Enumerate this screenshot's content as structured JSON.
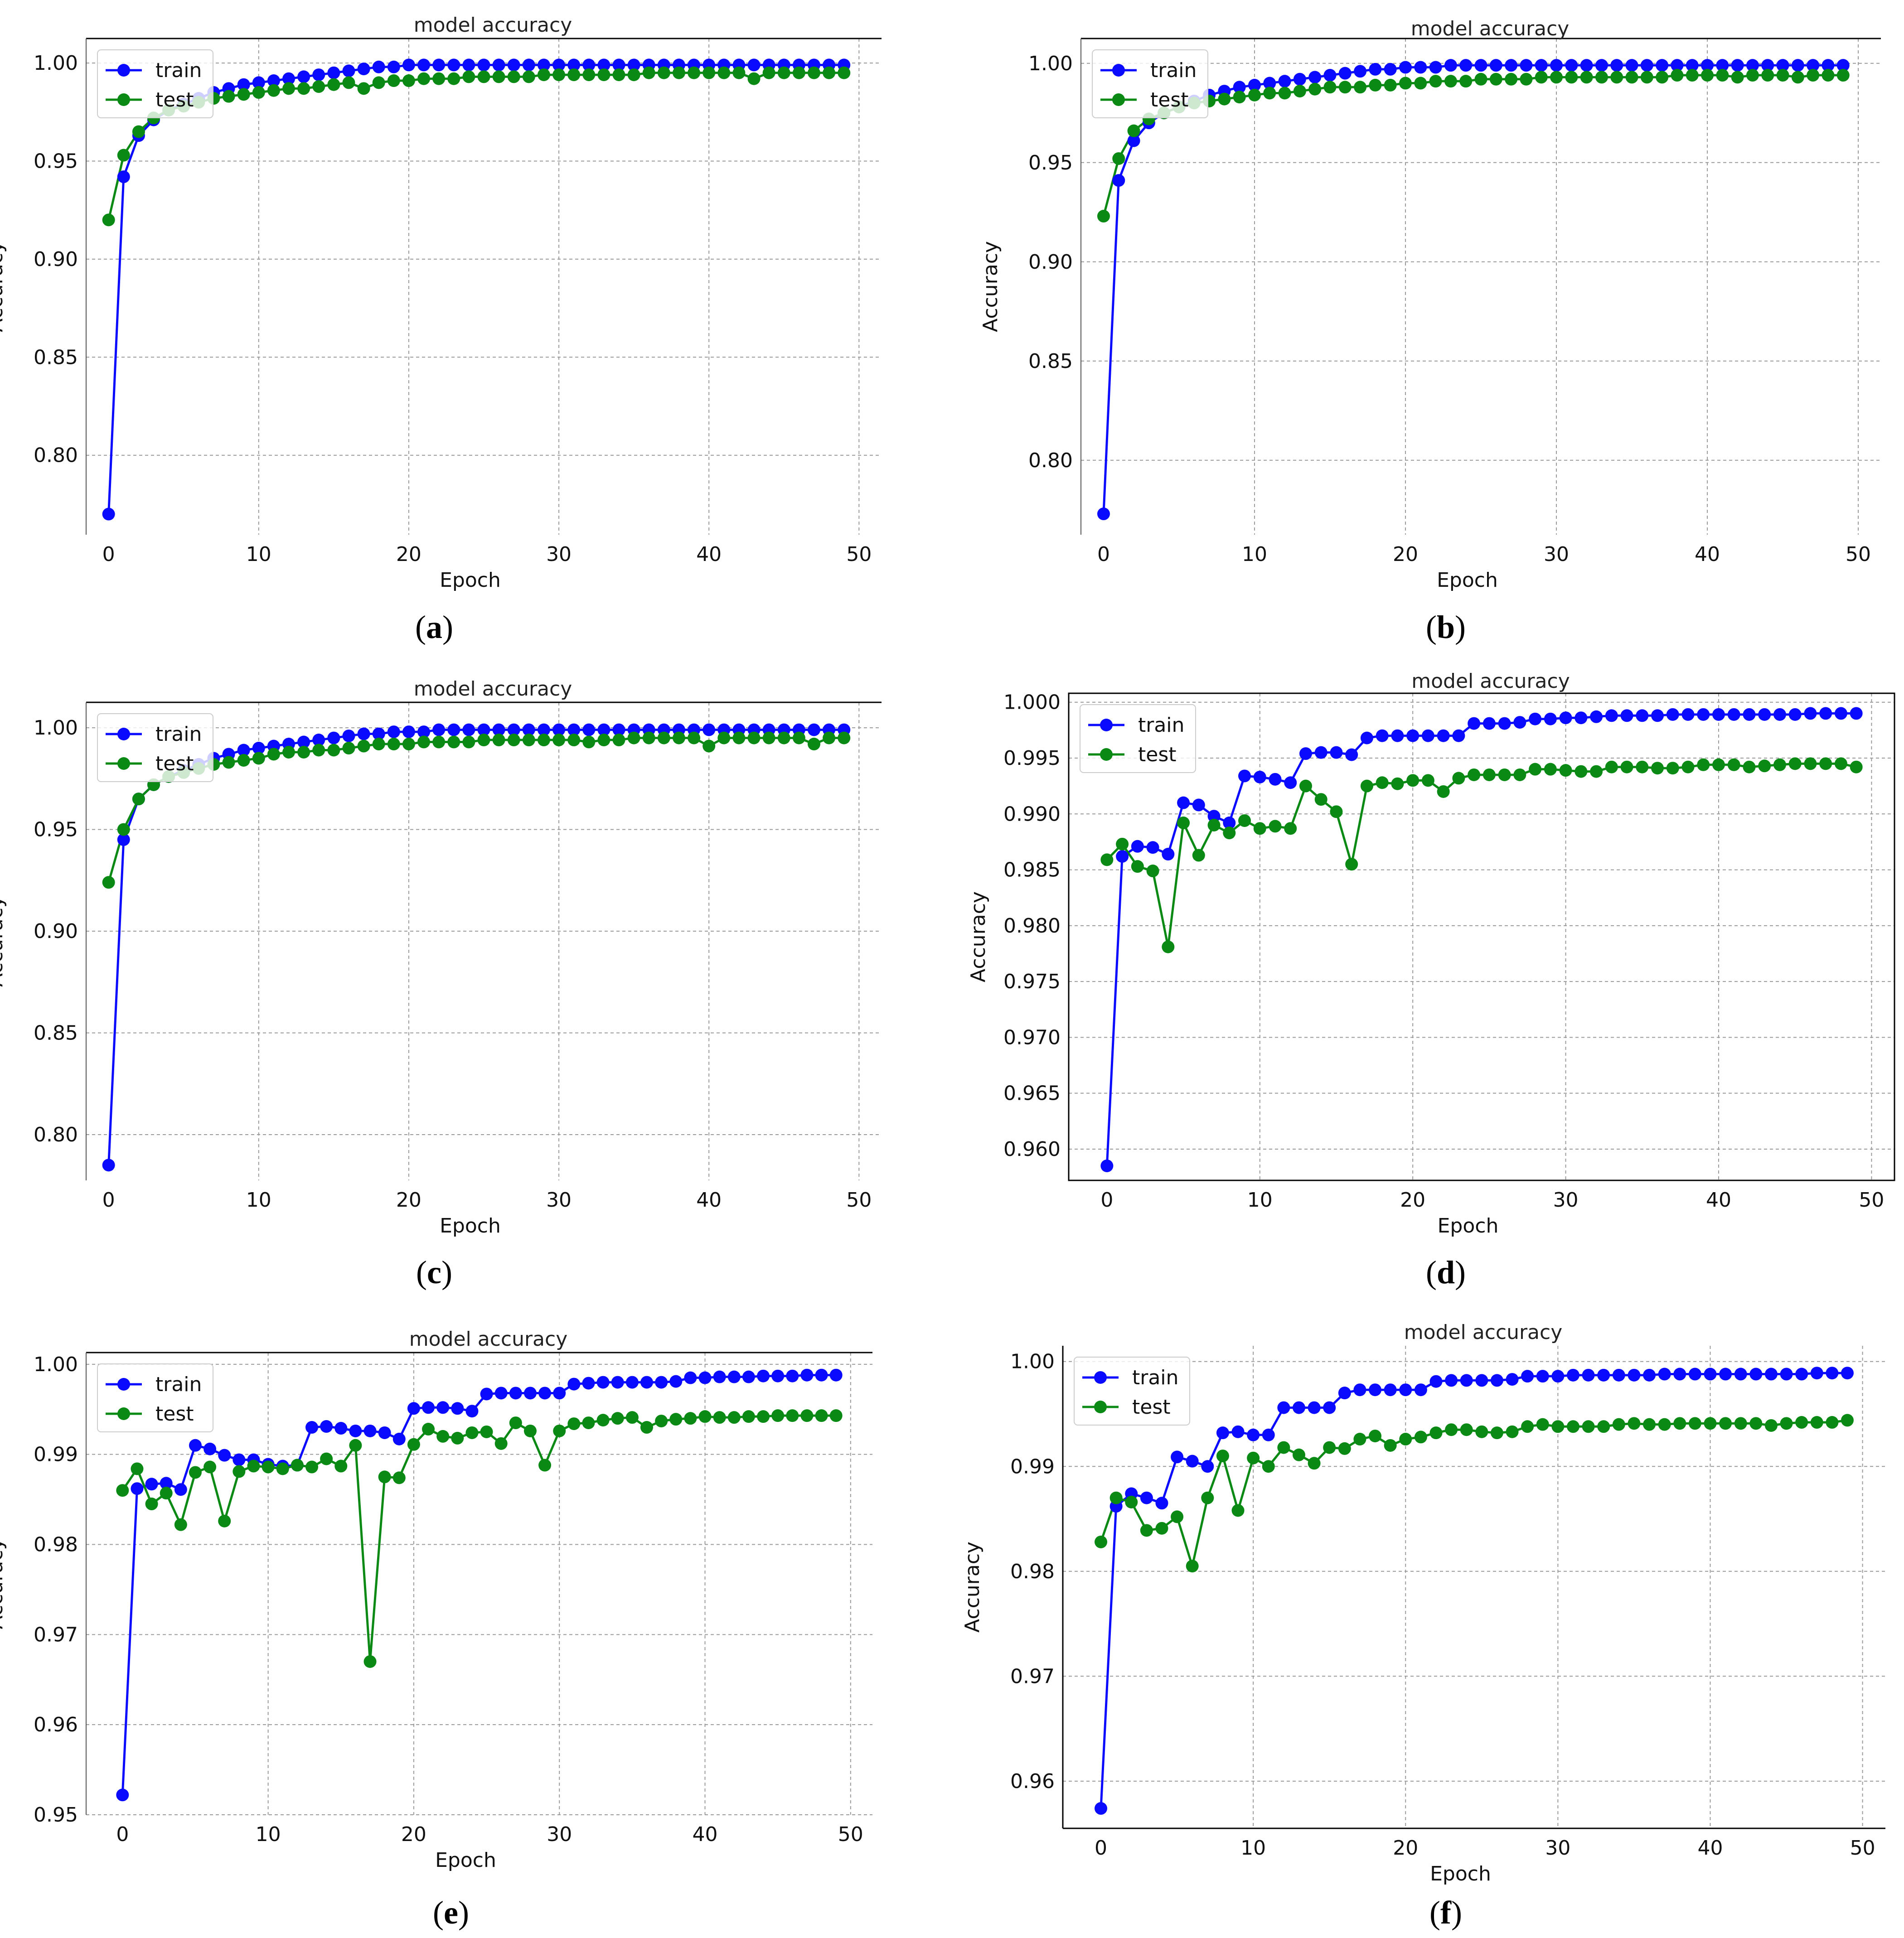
{
  "colors": {
    "train": "#0a0aff",
    "test": "#0a8a14",
    "grid": "#9a9a9a",
    "axis": "#000000"
  },
  "chart_data": [
    {
      "id": "a",
      "caption": "a",
      "type": "line",
      "title": "model accuracy",
      "xlabel": "Epoch",
      "ylabel": "Accuracy",
      "xlim": [
        -1.5,
        51.5
      ],
      "ylim": [
        0.7595,
        1.0125
      ],
      "xticks": [
        0,
        10,
        20,
        30,
        40,
        50
      ],
      "yticks": [
        0.8,
        0.85,
        0.9,
        0.95,
        1.0
      ],
      "ytick_labels": [
        "0.80",
        "0.85",
        "0.90",
        "0.95",
        "1.00"
      ],
      "legend": {
        "position": "top-left",
        "entries": [
          "train",
          "test"
        ]
      },
      "series": [
        {
          "name": "train",
          "values": [
            0.77,
            0.942,
            0.963,
            0.971,
            0.976,
            0.979,
            0.982,
            0.985,
            0.987,
            0.989,
            0.99,
            0.991,
            0.992,
            0.993,
            0.994,
            0.995,
            0.996,
            0.997,
            0.998,
            0.998,
            0.999,
            0.999,
            0.999,
            0.999,
            0.999,
            0.999,
            0.999,
            0.999,
            0.999,
            0.999,
            0.999,
            0.999,
            0.999,
            0.999,
            0.999,
            0.999,
            0.999,
            0.999,
            0.999,
            0.999,
            0.999,
            0.999,
            0.999,
            0.999,
            0.999,
            0.999,
            0.999,
            0.999,
            0.999,
            0.999
          ]
        },
        {
          "name": "test",
          "values": [
            0.92,
            0.953,
            0.965,
            0.972,
            0.976,
            0.978,
            0.98,
            0.982,
            0.983,
            0.984,
            0.985,
            0.986,
            0.987,
            0.987,
            0.988,
            0.989,
            0.99,
            0.987,
            0.99,
            0.991,
            0.991,
            0.992,
            0.992,
            0.992,
            0.993,
            0.993,
            0.993,
            0.993,
            0.993,
            0.994,
            0.994,
            0.994,
            0.994,
            0.994,
            0.994,
            0.994,
            0.995,
            0.995,
            0.995,
            0.995,
            0.995,
            0.995,
            0.995,
            0.992,
            0.995,
            0.995,
            0.995,
            0.995,
            0.995,
            0.995
          ]
        }
      ]
    },
    {
      "id": "b",
      "caption": "b",
      "type": "line",
      "title": "model accuracy",
      "xlabel": "Epoch",
      "ylabel": "Accuracy",
      "xlim": [
        -1.5,
        51.5
      ],
      "ylim": [
        0.7625,
        1.0125
      ],
      "xticks": [
        0,
        10,
        20,
        30,
        40,
        50
      ],
      "yticks": [
        0.8,
        0.85,
        0.9,
        0.95,
        1.0
      ],
      "ytick_labels": [
        "0.80",
        "0.85",
        "0.90",
        "0.95",
        "1.00"
      ],
      "legend": {
        "position": "top-left",
        "entries": [
          "train",
          "test"
        ]
      },
      "series": [
        {
          "name": "train",
          "values": [
            0.773,
            0.941,
            0.961,
            0.97,
            0.975,
            0.978,
            0.981,
            0.984,
            0.986,
            0.988,
            0.989,
            0.99,
            0.991,
            0.992,
            0.993,
            0.994,
            0.995,
            0.996,
            0.997,
            0.997,
            0.998,
            0.998,
            0.998,
            0.999,
            0.999,
            0.999,
            0.999,
            0.999,
            0.999,
            0.999,
            0.999,
            0.999,
            0.999,
            0.999,
            0.999,
            0.999,
            0.999,
            0.999,
            0.999,
            0.999,
            0.999,
            0.999,
            0.999,
            0.999,
            0.999,
            0.999,
            0.999,
            0.999,
            0.999,
            0.999
          ]
        },
        {
          "name": "test",
          "values": [
            0.923,
            0.952,
            0.966,
            0.972,
            0.975,
            0.978,
            0.98,
            0.981,
            0.982,
            0.983,
            0.984,
            0.985,
            0.985,
            0.986,
            0.987,
            0.988,
            0.988,
            0.988,
            0.989,
            0.989,
            0.99,
            0.99,
            0.991,
            0.991,
            0.991,
            0.992,
            0.992,
            0.992,
            0.992,
            0.993,
            0.993,
            0.993,
            0.993,
            0.993,
            0.993,
            0.993,
            0.993,
            0.993,
            0.994,
            0.994,
            0.994,
            0.994,
            0.993,
            0.994,
            0.994,
            0.994,
            0.993,
            0.994,
            0.994,
            0.994
          ]
        }
      ]
    },
    {
      "id": "c",
      "caption": "c",
      "type": "line",
      "title": "model accuracy",
      "xlabel": "Epoch",
      "ylabel": "Accuracy",
      "xlim": [
        -1.5,
        51.5
      ],
      "ylim": [
        0.7775,
        1.0125
      ],
      "xticks": [
        0,
        10,
        20,
        30,
        40,
        50
      ],
      "yticks": [
        0.8,
        0.85,
        0.9,
        0.95,
        1.0
      ],
      "ytick_labels": [
        "0.80",
        "0.85",
        "0.90",
        "0.95",
        "1.00"
      ],
      "legend": {
        "position": "top-left",
        "entries": [
          "train",
          "test"
        ]
      },
      "series": [
        {
          "name": "train",
          "values": [
            0.785,
            0.945,
            0.965,
            0.972,
            0.976,
            0.979,
            0.982,
            0.985,
            0.987,
            0.989,
            0.99,
            0.991,
            0.992,
            0.993,
            0.994,
            0.995,
            0.996,
            0.997,
            0.997,
            0.998,
            0.998,
            0.998,
            0.999,
            0.999,
            0.999,
            0.999,
            0.999,
            0.999,
            0.999,
            0.999,
            0.999,
            0.999,
            0.999,
            0.999,
            0.999,
            0.999,
            0.999,
            0.999,
            0.999,
            0.999,
            0.999,
            0.999,
            0.999,
            0.999,
            0.999,
            0.999,
            0.999,
            0.999,
            0.999,
            0.999
          ]
        },
        {
          "name": "test",
          "values": [
            0.924,
            0.95,
            0.965,
            0.972,
            0.976,
            0.978,
            0.98,
            0.982,
            0.983,
            0.984,
            0.985,
            0.987,
            0.988,
            0.988,
            0.989,
            0.989,
            0.99,
            0.991,
            0.992,
            0.992,
            0.992,
            0.993,
            0.993,
            0.993,
            0.993,
            0.994,
            0.994,
            0.994,
            0.994,
            0.994,
            0.994,
            0.994,
            0.993,
            0.994,
            0.994,
            0.995,
            0.995,
            0.995,
            0.995,
            0.995,
            0.991,
            0.995,
            0.995,
            0.995,
            0.995,
            0.995,
            0.995,
            0.992,
            0.995,
            0.995
          ]
        }
      ]
    },
    {
      "id": "d",
      "caption": "d",
      "type": "line",
      "title": "model accuracy",
      "xlabel": "Epoch",
      "ylabel": "Accuracy",
      "xlim": [
        -2.5,
        51.5
      ],
      "ylim": [
        0.9572,
        1.0008
      ],
      "xticks": [
        0,
        10,
        20,
        30,
        40,
        50
      ],
      "yticks": [
        0.96,
        0.965,
        0.97,
        0.975,
        0.98,
        0.985,
        0.99,
        0.995,
        1.0
      ],
      "ytick_labels": [
        "0.960",
        "0.965",
        "0.970",
        "0.975",
        "0.980",
        "0.985",
        "0.990",
        "0.995",
        "1.000"
      ],
      "legend": {
        "position": "top-left",
        "entries": [
          "train",
          "test"
        ]
      },
      "series": [
        {
          "name": "train",
          "values": [
            0.9585,
            0.9862,
            0.9871,
            0.987,
            0.9864,
            0.991,
            0.9908,
            0.9898,
            0.9892,
            0.9934,
            0.9933,
            0.9931,
            0.9928,
            0.9954,
            0.9955,
            0.9955,
            0.9953,
            0.9968,
            0.997,
            0.997,
            0.997,
            0.997,
            0.997,
            0.997,
            0.9981,
            0.9981,
            0.9981,
            0.9982,
            0.9985,
            0.9985,
            0.9986,
            0.9986,
            0.9987,
            0.9988,
            0.9988,
            0.9988,
            0.9988,
            0.9989,
            0.9989,
            0.9989,
            0.9989,
            0.9989,
            0.9989,
            0.9989,
            0.9989,
            0.9989,
            0.999,
            0.999,
            0.999,
            0.999
          ]
        },
        {
          "name": "test",
          "values": [
            0.9859,
            0.9873,
            0.9853,
            0.9849,
            0.9781,
            0.9892,
            0.9863,
            0.989,
            0.9883,
            0.9894,
            0.9887,
            0.9889,
            0.9887,
            0.9925,
            0.9913,
            0.9902,
            0.9855,
            0.9925,
            0.9928,
            0.9927,
            0.993,
            0.993,
            0.992,
            0.9932,
            0.9935,
            0.9935,
            0.9935,
            0.9935,
            0.994,
            0.994,
            0.9939,
            0.9938,
            0.9938,
            0.9942,
            0.9942,
            0.9942,
            0.9941,
            0.9941,
            0.9942,
            0.9944,
            0.9944,
            0.9944,
            0.9942,
            0.9943,
            0.9944,
            0.9945,
            0.9945,
            0.9945,
            0.9945,
            0.9942
          ]
        }
      ]
    },
    {
      "id": "e",
      "caption": "e",
      "type": "line",
      "title": "model accuracy",
      "xlabel": "Epoch",
      "ylabel": "Accuracy",
      "xlim": [
        -2.5,
        51.5
      ],
      "ylim": [
        0.95,
        1.0013
      ],
      "xticks": [
        0,
        10,
        20,
        30,
        40,
        50
      ],
      "yticks": [
        0.95,
        0.96,
        0.97,
        0.98,
        0.99,
        1.0
      ],
      "ytick_labels": [
        "0.95",
        "0.96",
        "0.97",
        "0.98",
        "0.99",
        "1.00"
      ],
      "legend": {
        "position": "top-left",
        "entries": [
          "train",
          "test"
        ]
      },
      "series": [
        {
          "name": "train",
          "values": [
            0.9522,
            0.9862,
            0.9867,
            0.9868,
            0.9861,
            0.991,
            0.9906,
            0.9899,
            0.9894,
            0.9894,
            0.9889,
            0.9887,
            0.9888,
            0.993,
            0.9931,
            0.9929,
            0.9926,
            0.9926,
            0.9924,
            0.9917,
            0.9951,
            0.9952,
            0.9952,
            0.9951,
            0.9948,
            0.9967,
            0.9968,
            0.9968,
            0.9968,
            0.9968,
            0.9968,
            0.9978,
            0.9979,
            0.998,
            0.998,
            0.998,
            0.998,
            0.998,
            0.9981,
            0.9985,
            0.9985,
            0.9986,
            0.9986,
            0.9986,
            0.9987,
            0.9987,
            0.9987,
            0.9988,
            0.9988,
            0.9988
          ]
        },
        {
          "name": "test",
          "values": [
            0.986,
            0.9884,
            0.9845,
            0.9857,
            0.9822,
            0.988,
            0.9886,
            0.9826,
            0.9881,
            0.9887,
            0.9886,
            0.9884,
            0.9888,
            0.9886,
            0.9895,
            0.9887,
            0.991,
            0.967,
            0.9875,
            0.9874,
            0.9911,
            0.9928,
            0.992,
            0.9918,
            0.9924,
            0.9925,
            0.9912,
            0.9935,
            0.9926,
            0.9888,
            0.9926,
            0.9934,
            0.9935,
            0.9938,
            0.994,
            0.9941,
            0.993,
            0.9937,
            0.9939,
            0.994,
            0.9942,
            0.9941,
            0.9941,
            0.9942,
            0.9942,
            0.9943,
            0.9943,
            0.9943,
            0.9943,
            0.9943
          ]
        }
      ]
    },
    {
      "id": "f",
      "caption": "f",
      "type": "line",
      "title": "model accuracy",
      "xlabel": "Epoch",
      "ylabel": "Accuracy",
      "xlim": [
        -2.5,
        51.5
      ],
      "ylim": [
        0.9555,
        1.0015
      ],
      "xticks": [
        0,
        10,
        20,
        30,
        40,
        50
      ],
      "yticks": [
        0.96,
        0.97,
        0.98,
        0.99,
        1.0
      ],
      "ytick_labels": [
        "0.96",
        "0.97",
        "0.98",
        "0.99",
        "1.00"
      ],
      "legend": {
        "position": "top-left",
        "entries": [
          "train",
          "test"
        ]
      },
      "series": [
        {
          "name": "train",
          "values": [
            0.9574,
            0.9862,
            0.9874,
            0.987,
            0.9865,
            0.9909,
            0.9905,
            0.99,
            0.9932,
            0.9933,
            0.993,
            0.993,
            0.9956,
            0.9956,
            0.9956,
            0.9956,
            0.997,
            0.9973,
            0.9973,
            0.9973,
            0.9973,
            0.9973,
            0.9981,
            0.9982,
            0.9982,
            0.9982,
            0.9982,
            0.9983,
            0.9986,
            0.9986,
            0.9986,
            0.9987,
            0.9987,
            0.9987,
            0.9987,
            0.9987,
            0.9987,
            0.9988,
            0.9988,
            0.9988,
            0.9988,
            0.9988,
            0.9988,
            0.9988,
            0.9988,
            0.9988,
            0.9988,
            0.9989,
            0.9989,
            0.9989
          ]
        },
        {
          "name": "test",
          "values": [
            0.9828,
            0.987,
            0.9866,
            0.9839,
            0.9841,
            0.9852,
            0.9805,
            0.987,
            0.991,
            0.9858,
            0.9908,
            0.99,
            0.9918,
            0.9911,
            0.9903,
            0.9918,
            0.9917,
            0.9926,
            0.9929,
            0.992,
            0.9926,
            0.9928,
            0.9932,
            0.9935,
            0.9935,
            0.9933,
            0.9932,
            0.9933,
            0.9938,
            0.994,
            0.9938,
            0.9938,
            0.9938,
            0.9938,
            0.994,
            0.9941,
            0.994,
            0.994,
            0.9941,
            0.9941,
            0.9941,
            0.9941,
            0.9941,
            0.9941,
            0.9939,
            0.9941,
            0.9942,
            0.9942,
            0.9942,
            0.9944
          ]
        }
      ]
    }
  ]
}
